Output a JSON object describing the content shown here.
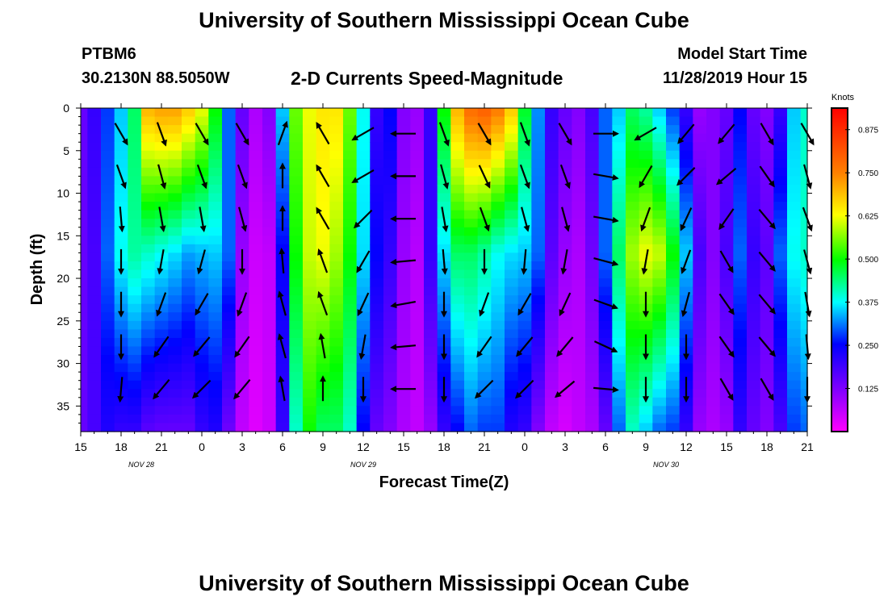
{
  "header": {
    "title_top": "University of Southern Mississippi Ocean Cube",
    "title_bottom": "University of Southern Mississippi Ocean Cube",
    "station": "PTBM6",
    "coords": "30.2130N 88.5050W",
    "subtitle": "2-D Currents Speed-Magnitude",
    "start_label": "Model Start Time",
    "start_time": "11/28/2019 Hour 15"
  },
  "chart_data": {
    "type": "heatmap",
    "title": "2-D Currents Speed-Magnitude",
    "xlabel": "Forecast Time(Z)",
    "ylabel": "Depth (ft)",
    "xlim": [
      0,
      54
    ],
    "ylim": [
      0,
      38
    ],
    "x_tick_values": [
      0,
      3,
      6,
      9,
      12,
      15,
      18,
      21,
      24,
      27,
      30,
      33,
      36,
      39,
      42,
      45,
      48,
      51,
      54
    ],
    "x_tick_labels": [
      "15",
      "18",
      "21",
      "0",
      "3",
      "6",
      "9",
      "12",
      "15",
      "18",
      "21",
      "0",
      "3",
      "6",
      "9",
      "12",
      "15",
      "18",
      "21"
    ],
    "date_labels": [
      {
        "x": 4.5,
        "text": "NOV  28"
      },
      {
        "x": 21,
        "text": "NOV  29"
      },
      {
        "x": 43.5,
        "text": "NOV  30"
      }
    ],
    "y_ticks": [
      0,
      5,
      10,
      15,
      20,
      25,
      30,
      35
    ],
    "colorbar": {
      "label": "Knots",
      "min": 0,
      "max": 0.9375,
      "ticks": [
        "0.875",
        "0.750",
        "0.625",
        "0.500",
        "0.375",
        "0.250",
        "0.125"
      ],
      "tick_values": [
        0.875,
        0.75,
        0.625,
        0.5,
        0.375,
        0.25,
        0.125
      ]
    },
    "speed_profile_columns": [
      {
        "t": 0,
        "top": 0.15,
        "bottom": 0.15,
        "mid": 0.15
      },
      {
        "t": 1,
        "top": 0.2,
        "bottom": 0.18,
        "mid": 0.18
      },
      {
        "t": 2,
        "top": 0.28,
        "bottom": 0.22,
        "mid": 0.3
      },
      {
        "t": 3,
        "top": 0.35,
        "bottom": 0.2,
        "mid": 0.38
      },
      {
        "t": 4,
        "top": 0.45,
        "bottom": 0.2,
        "mid": 0.42
      },
      {
        "t": 5,
        "top": 0.7,
        "bottom": 0.16,
        "mid": 0.4
      },
      {
        "t": 6,
        "top": 0.72,
        "bottom": 0.15,
        "mid": 0.38
      },
      {
        "t": 7,
        "top": 0.72,
        "bottom": 0.15,
        "mid": 0.36
      },
      {
        "t": 8,
        "top": 0.68,
        "bottom": 0.15,
        "mid": 0.33
      },
      {
        "t": 9,
        "top": 0.62,
        "bottom": 0.2,
        "mid": 0.34
      },
      {
        "t": 10,
        "top": 0.5,
        "bottom": 0.22,
        "mid": 0.35
      },
      {
        "t": 11,
        "top": 0.3,
        "bottom": 0.14,
        "mid": 0.3
      },
      {
        "t": 12,
        "top": 0.15,
        "bottom": 0.06,
        "mid": 0.1
      },
      {
        "t": 13,
        "top": 0.08,
        "bottom": 0.03,
        "mid": 0.05
      },
      {
        "t": 14,
        "top": 0.12,
        "bottom": 0.05,
        "mid": 0.06
      },
      {
        "t": 15,
        "top": 0.35,
        "bottom": 0.2,
        "mid": 0.25
      },
      {
        "t": 16,
        "top": 0.55,
        "bottom": 0.4,
        "mid": 0.5
      },
      {
        "t": 17,
        "top": 0.62,
        "bottom": 0.5,
        "mid": 0.6
      },
      {
        "t": 18,
        "top": 0.65,
        "bottom": 0.45,
        "mid": 0.62
      },
      {
        "t": 19,
        "top": 0.65,
        "bottom": 0.45,
        "mid": 0.58
      },
      {
        "t": 20,
        "top": 0.55,
        "bottom": 0.4,
        "mid": 0.5
      },
      {
        "t": 21,
        "top": 0.38,
        "bottom": 0.25,
        "mid": 0.36
      },
      {
        "t": 22,
        "top": 0.2,
        "bottom": 0.15,
        "mid": 0.25
      },
      {
        "t": 23,
        "top": 0.25,
        "bottom": 0.12,
        "mid": 0.2
      },
      {
        "t": 24,
        "top": 0.12,
        "bottom": 0.08,
        "mid": 0.1
      },
      {
        "t": 25,
        "top": 0.1,
        "bottom": 0.06,
        "mid": 0.07
      },
      {
        "t": 26,
        "top": 0.2,
        "bottom": 0.1,
        "mid": 0.2
      },
      {
        "t": 27,
        "top": 0.5,
        "bottom": 0.2,
        "mid": 0.36
      },
      {
        "t": 28,
        "top": 0.7,
        "bottom": 0.25,
        "mid": 0.45
      },
      {
        "t": 29,
        "top": 0.78,
        "bottom": 0.3,
        "mid": 0.45
      },
      {
        "t": 30,
        "top": 0.8,
        "bottom": 0.28,
        "mid": 0.42
      },
      {
        "t": 31,
        "top": 0.76,
        "bottom": 0.28,
        "mid": 0.38
      },
      {
        "t": 32,
        "top": 0.68,
        "bottom": 0.22,
        "mid": 0.36
      },
      {
        "t": 33,
        "top": 0.48,
        "bottom": 0.2,
        "mid": 0.35
      },
      {
        "t": 34,
        "top": 0.32,
        "bottom": 0.12,
        "mid": 0.3
      },
      {
        "t": 35,
        "top": 0.2,
        "bottom": 0.06,
        "mid": 0.16
      },
      {
        "t": 36,
        "top": 0.15,
        "bottom": 0.04,
        "mid": 0.1
      },
      {
        "t": 37,
        "top": 0.12,
        "bottom": 0.06,
        "mid": 0.08
      },
      {
        "t": 38,
        "top": 0.18,
        "bottom": 0.08,
        "mid": 0.14
      },
      {
        "t": 39,
        "top": 0.3,
        "bottom": 0.15,
        "mid": 0.3
      },
      {
        "t": 40,
        "top": 0.35,
        "bottom": 0.3,
        "mid": 0.45
      },
      {
        "t": 41,
        "top": 0.45,
        "bottom": 0.4,
        "mid": 0.58
      },
      {
        "t": 42,
        "top": 0.42,
        "bottom": 0.35,
        "mid": 0.62
      },
      {
        "t": 43,
        "top": 0.35,
        "bottom": 0.3,
        "mid": 0.6
      },
      {
        "t": 44,
        "top": 0.28,
        "bottom": 0.28,
        "mid": 0.5
      },
      {
        "t": 45,
        "top": 0.2,
        "bottom": 0.2,
        "mid": 0.35
      },
      {
        "t": 46,
        "top": 0.1,
        "bottom": 0.1,
        "mid": 0.18
      },
      {
        "t": 47,
        "top": 0.12,
        "bottom": 0.08,
        "mid": 0.12
      },
      {
        "t": 48,
        "top": 0.15,
        "bottom": 0.1,
        "mid": 0.18
      },
      {
        "t": 49,
        "top": 0.25,
        "bottom": 0.2,
        "mid": 0.3
      },
      {
        "t": 50,
        "top": 0.15,
        "bottom": 0.15,
        "mid": 0.2
      },
      {
        "t": 51,
        "top": 0.12,
        "bottom": 0.12,
        "mid": 0.16
      },
      {
        "t": 52,
        "top": 0.2,
        "bottom": 0.18,
        "mid": 0.3
      },
      {
        "t": 53,
        "top": 0.35,
        "bottom": 0.28,
        "mid": 0.38
      },
      {
        "t": 54,
        "top": 0.4,
        "bottom": 0.3,
        "mid": 0.4
      }
    ],
    "vector_times": [
      3,
      6,
      9,
      12,
      15,
      18,
      21,
      24,
      27,
      30,
      33,
      36,
      39,
      42,
      45,
      48,
      51,
      54
    ],
    "vector_depths": [
      3,
      8,
      13,
      18,
      23,
      28,
      33
    ],
    "vector_directions_deg": [
      [
        150,
        160,
        175,
        180,
        180,
        180,
        185
      ],
      [
        160,
        165,
        170,
        190,
        200,
        215,
        220
      ],
      [
        150,
        160,
        170,
        195,
        210,
        220,
        225
      ],
      [
        150,
        160,
        165,
        180,
        200,
        215,
        220
      ],
      [
        20,
        0,
        0,
        355,
        345,
        345,
        350
      ],
      [
        330,
        330,
        330,
        340,
        340,
        350,
        0
      ],
      [
        240,
        240,
        225,
        210,
        205,
        190,
        180
      ],
      [
        270,
        270,
        270,
        265,
        260,
        265,
        270
      ],
      [
        160,
        165,
        170,
        175,
        180,
        180,
        180
      ],
      [
        150,
        155,
        160,
        180,
        200,
        215,
        225
      ],
      [
        160,
        160,
        165,
        185,
        210,
        220,
        225
      ],
      [
        150,
        160,
        165,
        190,
        205,
        220,
        230
      ],
      [
        90,
        100,
        100,
        105,
        110,
        115,
        95
      ],
      [
        240,
        210,
        200,
        190,
        180,
        180,
        180
      ],
      [
        220,
        225,
        205,
        200,
        195,
        180,
        180
      ],
      [
        220,
        230,
        215,
        150,
        145,
        145,
        150
      ],
      [
        150,
        145,
        140,
        140,
        140,
        140,
        150
      ],
      [
        150,
        165,
        160,
        165,
        170,
        175,
        180
      ]
    ]
  }
}
